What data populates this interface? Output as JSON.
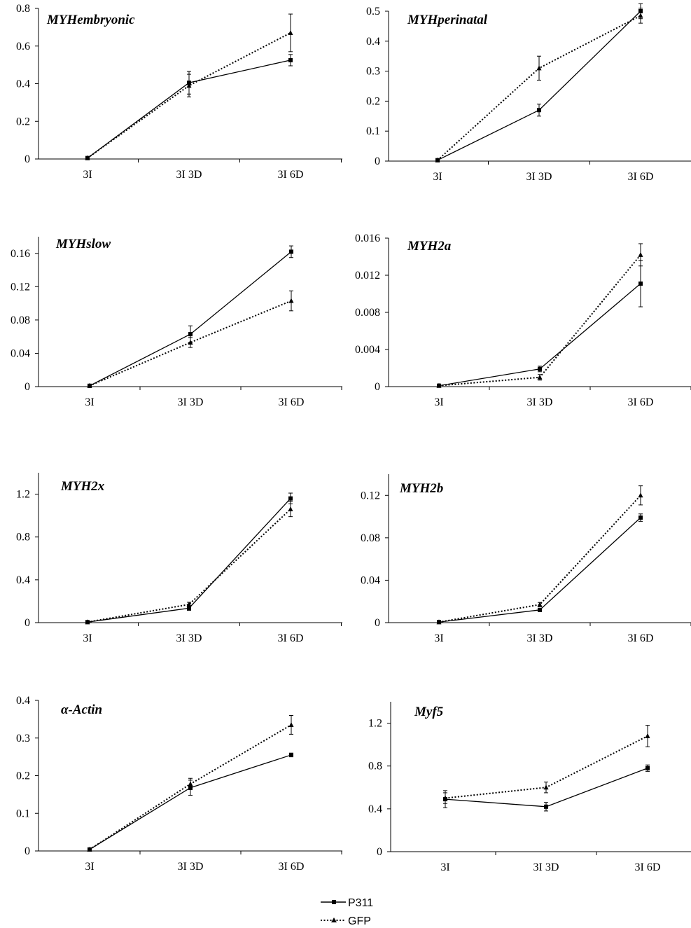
{
  "chart_data": [
    {
      "type": "line",
      "title": "MYHembryonic",
      "categories": [
        "3I",
        "3I 3D",
        "3I 6D"
      ],
      "yticks": [
        "0",
        "0.2",
        "0.4",
        "0.6",
        "0.8"
      ],
      "ylim": [
        0,
        0.8
      ],
      "series": [
        {
          "name": "P311",
          "values": [
            0.005,
            0.405,
            0.525
          ],
          "errors": [
            0.004,
            0.06,
            0.03
          ]
        },
        {
          "name": "GFP",
          "values": [
            0.005,
            0.39,
            0.67
          ],
          "errors": [
            0.004,
            0.06,
            0.1
          ]
        }
      ]
    },
    {
      "type": "line",
      "title": "MYHperinatal",
      "categories": [
        "3I",
        "3I 3D",
        "3I 6D"
      ],
      "yticks": [
        "0",
        "0.1",
        "0.2",
        "0.3",
        "0.4",
        "0.5"
      ],
      "ylim": [
        0,
        0.5
      ],
      "series": [
        {
          "name": "P311",
          "values": [
            0.003,
            0.17,
            0.5
          ],
          "errors": [
            0.002,
            0.02,
            0.025
          ]
        },
        {
          "name": "GFP",
          "values": [
            0.003,
            0.31,
            0.485
          ],
          "errors": [
            0.002,
            0.04,
            0.025
          ]
        }
      ]
    },
    {
      "type": "line",
      "title": "MYHslow",
      "categories": [
        "3I",
        "3I 3D",
        "3I 6D"
      ],
      "yticks": [
        "0",
        "0.04",
        "0.08",
        "0.12",
        "0.16"
      ],
      "ylim": [
        0,
        0.18
      ],
      "series": [
        {
          "name": "P311",
          "values": [
            0.001,
            0.063,
            0.162
          ],
          "errors": [
            0.001,
            0.01,
            0.007
          ]
        },
        {
          "name": "GFP",
          "values": [
            0.001,
            0.053,
            0.103
          ],
          "errors": [
            0.001,
            0.006,
            0.012
          ]
        }
      ]
    },
    {
      "type": "line",
      "title": "MYH2a",
      "categories": [
        "3I",
        "3I 3D",
        "3I 6D"
      ],
      "yticks": [
        "0",
        "0.004",
        "0.008",
        "0.012",
        "0.016"
      ],
      "ylim": [
        0,
        0.016
      ],
      "series": [
        {
          "name": "P311",
          "values": [
            0.0001,
            0.0019,
            0.0111
          ],
          "errors": [
            0.0001,
            0.0003,
            0.0025
          ]
        },
        {
          "name": "GFP",
          "values": [
            0.0001,
            0.001,
            0.0142
          ],
          "errors": [
            0.0001,
            0.0003,
            0.0012
          ]
        }
      ]
    },
    {
      "type": "line",
      "title": "MYH2x",
      "categories": [
        "3I",
        "3I 3D",
        "3I 6D"
      ],
      "yticks": [
        "0",
        "0.4",
        "0.8",
        "1.2"
      ],
      "ylim": [
        0,
        1.4
      ],
      "series": [
        {
          "name": "P311",
          "values": [
            0.005,
            0.135,
            1.16
          ],
          "errors": [
            0.004,
            0.02,
            0.05
          ]
        },
        {
          "name": "GFP",
          "values": [
            0.005,
            0.17,
            1.06
          ],
          "errors": [
            0.004,
            0.02,
            0.07
          ]
        }
      ]
    },
    {
      "type": "line",
      "title": "MYH2b",
      "categories": [
        "3I",
        "3I 3D",
        "3I 6D"
      ],
      "yticks": [
        "0",
        "0.04",
        "0.08",
        "0.12"
      ],
      "ylim": [
        0,
        0.14
      ],
      "series": [
        {
          "name": "P311",
          "values": [
            0.0005,
            0.012,
            0.099
          ],
          "errors": [
            0.0004,
            0.0015,
            0.0035
          ]
        },
        {
          "name": "GFP",
          "values": [
            0.0005,
            0.017,
            0.12
          ],
          "errors": [
            0.0004,
            0.002,
            0.009
          ]
        }
      ]
    },
    {
      "type": "line",
      "title": "α-Actin",
      "categories": [
        "3I",
        "3I 3D",
        "3I 6D"
      ],
      "yticks": [
        "0",
        "0.1",
        "0.2",
        "0.3",
        "0.4"
      ],
      "ylim": [
        0,
        0.4
      ],
      "series": [
        {
          "name": "P311",
          "values": [
            0.004,
            0.168,
            0.255
          ],
          "errors": [
            0.003,
            0.02,
            0.005
          ]
        },
        {
          "name": "GFP",
          "values": [
            0.004,
            0.178,
            0.335
          ],
          "errors": [
            0.003,
            0.015,
            0.025
          ]
        }
      ]
    },
    {
      "type": "line",
      "title": "Myf5",
      "categories": [
        "3I",
        "3I 3D",
        "3I 6D"
      ],
      "yticks": [
        "0",
        "0.4",
        "0.8",
        "1.2"
      ],
      "ylim": [
        0,
        1.4
      ],
      "series": [
        {
          "name": "P311",
          "values": [
            0.49,
            0.42,
            0.78
          ],
          "errors": [
            0.08,
            0.04,
            0.03
          ]
        },
        {
          "name": "GFP",
          "values": [
            0.5,
            0.6,
            1.08
          ],
          "errors": [
            0.05,
            0.05,
            0.1
          ]
        }
      ]
    }
  ],
  "legend": {
    "placement": "bottom-center",
    "items": [
      {
        "label": "P311",
        "marker": "square",
        "line": "solid"
      },
      {
        "label": "GFP",
        "marker": "triangle",
        "line": "dotted"
      }
    ]
  }
}
